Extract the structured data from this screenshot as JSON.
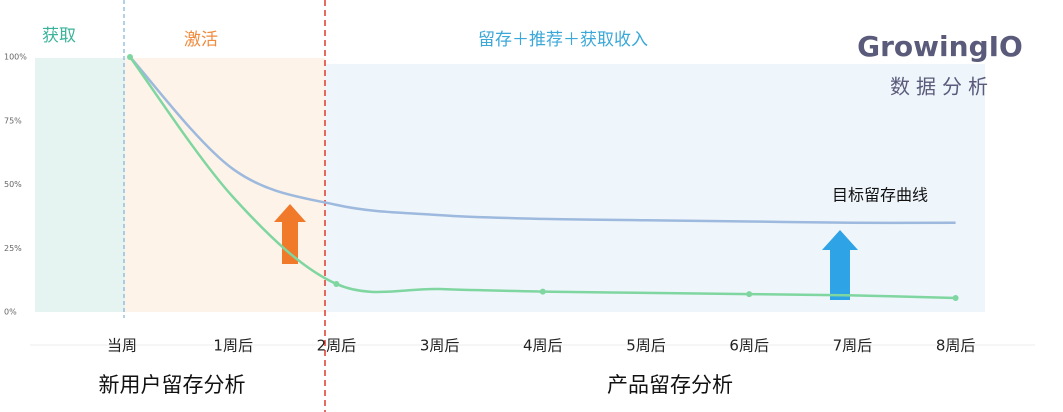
{
  "chart_data": {
    "type": "line",
    "categories": [
      "当周",
      "1周后",
      "2周后",
      "3周后",
      "4周后",
      "5周后",
      "6周后",
      "7周后",
      "8周后"
    ],
    "series": [
      {
        "name": "目标留存曲线",
        "color": "#9db9dd",
        "values": [
          100,
          56,
          42,
          38,
          36.5,
          36,
          35.5,
          35,
          35
        ]
      },
      {
        "color": "#7fd6a0",
        "values": [
          100,
          45,
          11,
          9,
          8,
          7.5,
          7,
          6.5,
          5.5
        ]
      }
    ],
    "ylim": [
      0,
      100
    ],
    "yticks": [
      {
        "value": 0,
        "label": "0%"
      },
      {
        "value": 25,
        "label": "25%"
      },
      {
        "value": 50,
        "label": "50%"
      },
      {
        "value": 75,
        "label": "75%"
      },
      {
        "value": 100,
        "label": "100%"
      }
    ],
    "stages": [
      "获取",
      "激活",
      "留存＋推荐＋获取收入"
    ],
    "sections": [
      "新用户留存分析",
      "产品留存分析"
    ],
    "logo": {
      "name": "GrowingIO",
      "subtitle": "数据分析"
    }
  }
}
